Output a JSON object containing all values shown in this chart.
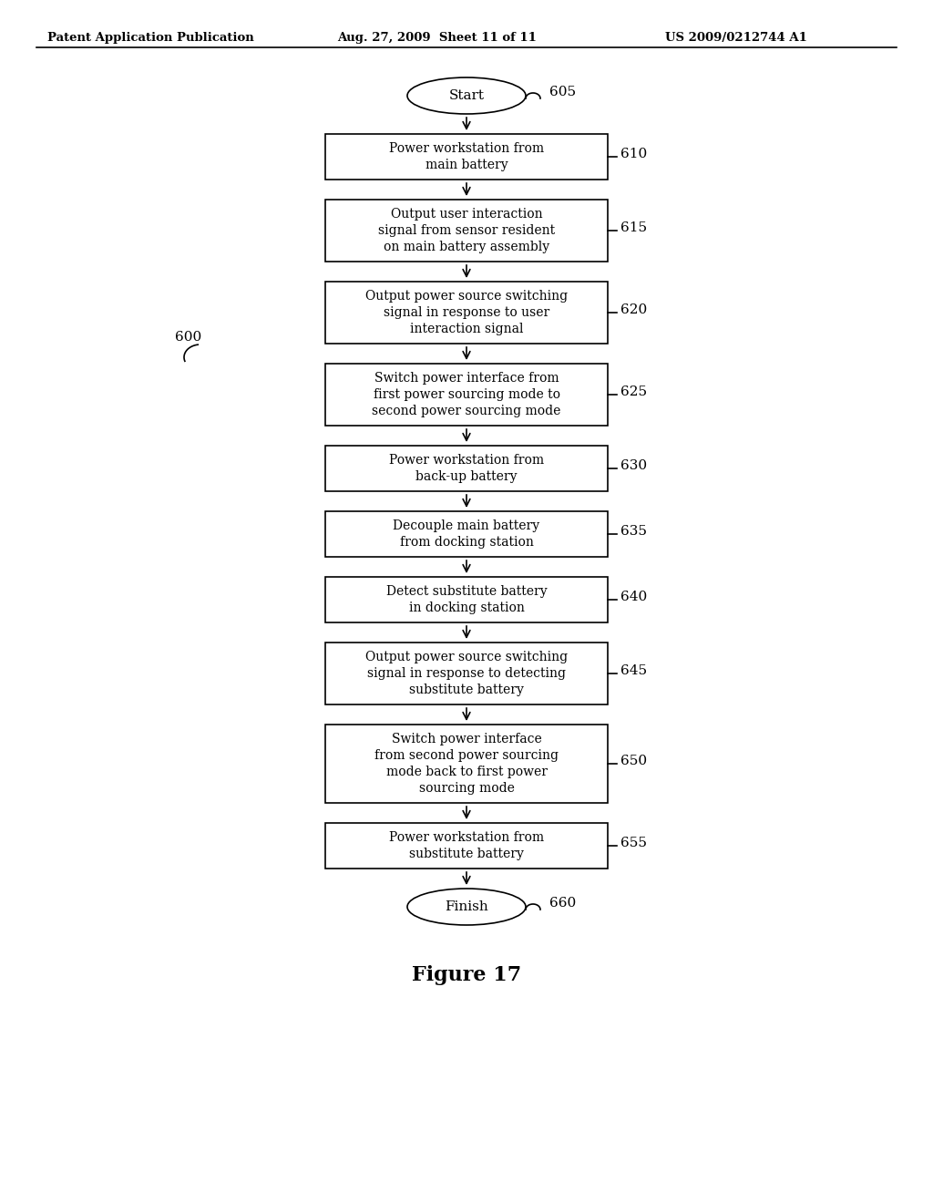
{
  "header_left": "Patent Application Publication",
  "header_mid": "Aug. 27, 2009  Sheet 11 of 11",
  "header_right": "US 2009/0212744 A1",
  "figure_label": "Figure 17",
  "diagram_label": "600",
  "start_label": "605",
  "finish_label": "660",
  "start_text": "Start",
  "finish_text": "Finish",
  "boxes": [
    {
      "label": "610",
      "text": "Power workstation from\nmain battery",
      "nlines": 2
    },
    {
      "label": "615",
      "text": "Output user interaction\nsignal from sensor resident\non main battery assembly",
      "nlines": 3
    },
    {
      "label": "620",
      "text": "Output power source switching\nsignal in response to user\ninteraction signal",
      "nlines": 3
    },
    {
      "label": "625",
      "text": "Switch power interface from\nfirst power sourcing mode to\nsecond power sourcing mode",
      "nlines": 3
    },
    {
      "label": "630",
      "text": "Power workstation from\nback-up battery",
      "nlines": 2
    },
    {
      "label": "635",
      "text": "Decouple main battery\nfrom docking station",
      "nlines": 2
    },
    {
      "label": "640",
      "text": "Detect substitute battery\nin docking station",
      "nlines": 2
    },
    {
      "label": "645",
      "text": "Output power source switching\nsignal in response to detecting\nsubstitute battery",
      "nlines": 3
    },
    {
      "label": "650",
      "text": "Switch power interface\nfrom second power sourcing\nmode back to first power\nsourcing mode",
      "nlines": 4
    },
    {
      "label": "655",
      "text": "Power workstation from\nsubstitute battery",
      "nlines": 2
    }
  ],
  "bg_color": "#ffffff",
  "box_edge_color": "#000000",
  "text_color": "#000000",
  "arrow_color": "#000000",
  "font_family": "DejaVu Serif"
}
